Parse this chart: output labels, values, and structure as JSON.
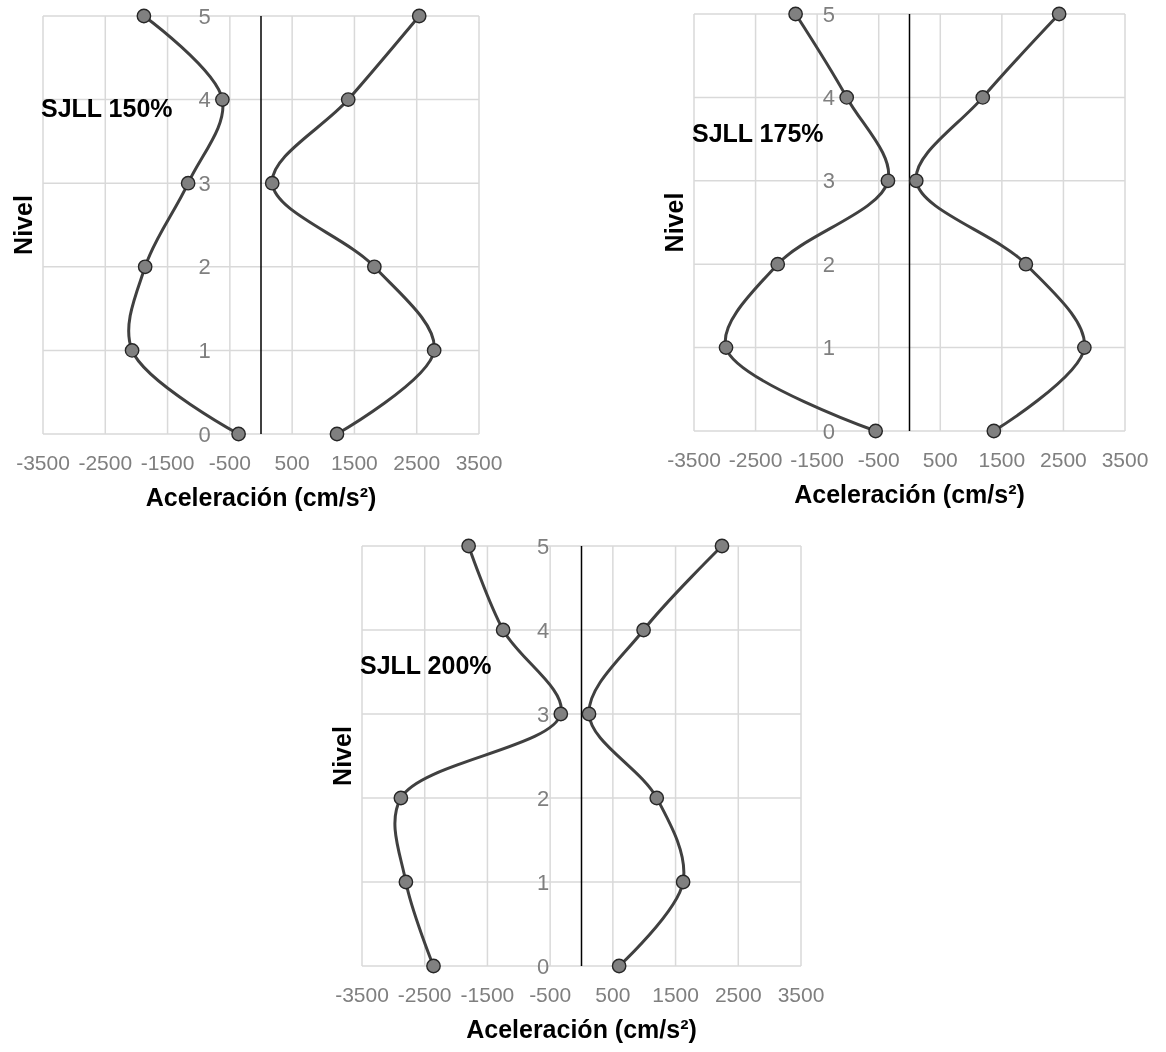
{
  "chart_data": [
    {
      "type": "line",
      "title": "SJLL 150%",
      "xlabel": "Aceleración (cm/s²)",
      "ylabel": "Nivel",
      "xlim": [
        -3500,
        3500
      ],
      "xticks": [
        -3500,
        -2500,
        -1500,
        -500,
        500,
        1500,
        2500,
        3500
      ],
      "ylim": [
        0,
        5
      ],
      "yticks": [
        0,
        1,
        2,
        3,
        4,
        5
      ],
      "grid": true,
      "marker": "circle",
      "series": [
        {
          "color": "#404040",
          "x": [
            -360,
            -2070,
            -1860,
            -1170,
            -620,
            -1880
          ],
          "values": [
            0,
            1,
            2,
            3,
            4,
            5
          ]
        },
        {
          "color": "#404040",
          "x": [
            1220,
            2780,
            1820,
            180,
            1400,
            2540
          ],
          "values": [
            0,
            1,
            2,
            3,
            4,
            5
          ]
        }
      ]
    },
    {
      "type": "line",
      "title": "SJLL 175%",
      "xlabel": "Aceleración (cm/s²)",
      "ylabel": "Nivel",
      "xlim": [
        -3500,
        3500
      ],
      "xticks": [
        -3500,
        -2500,
        -1500,
        -500,
        500,
        1500,
        2500,
        3500
      ],
      "ylim": [
        0,
        5
      ],
      "yticks": [
        0,
        1,
        2,
        3,
        4,
        5
      ],
      "grid": true,
      "marker": "circle",
      "series": [
        {
          "color": "#404040",
          "x": [
            -550,
            -2980,
            -2140,
            -350,
            -1020,
            -1850
          ],
          "values": [
            0,
            1,
            2,
            3,
            4,
            5
          ]
        },
        {
          "color": "#404040",
          "x": [
            1370,
            2840,
            1890,
            110,
            1190,
            2430
          ],
          "values": [
            0,
            1,
            2,
            3,
            4,
            5
          ]
        }
      ]
    },
    {
      "type": "line",
      "title": "SJLL 200%",
      "xlabel": "Aceleración (cm/s²)",
      "ylabel": "Nivel",
      "xlim": [
        -3500,
        3500
      ],
      "xticks": [
        -3500,
        -2500,
        -1500,
        -500,
        500,
        1500,
        2500,
        3500
      ],
      "ylim": [
        0,
        5
      ],
      "yticks": [
        0,
        1,
        2,
        3,
        4,
        5
      ],
      "grid": true,
      "marker": "circle",
      "series": [
        {
          "color": "#404040",
          "x": [
            -2360,
            -2800,
            -2880,
            -330,
            -1250,
            -1800
          ],
          "values": [
            0,
            1,
            2,
            3,
            4,
            5
          ]
        },
        {
          "color": "#404040",
          "x": [
            600,
            1620,
            1200,
            120,
            990,
            2240
          ],
          "values": [
            0,
            1,
            2,
            3,
            4,
            5
          ]
        }
      ]
    }
  ]
}
